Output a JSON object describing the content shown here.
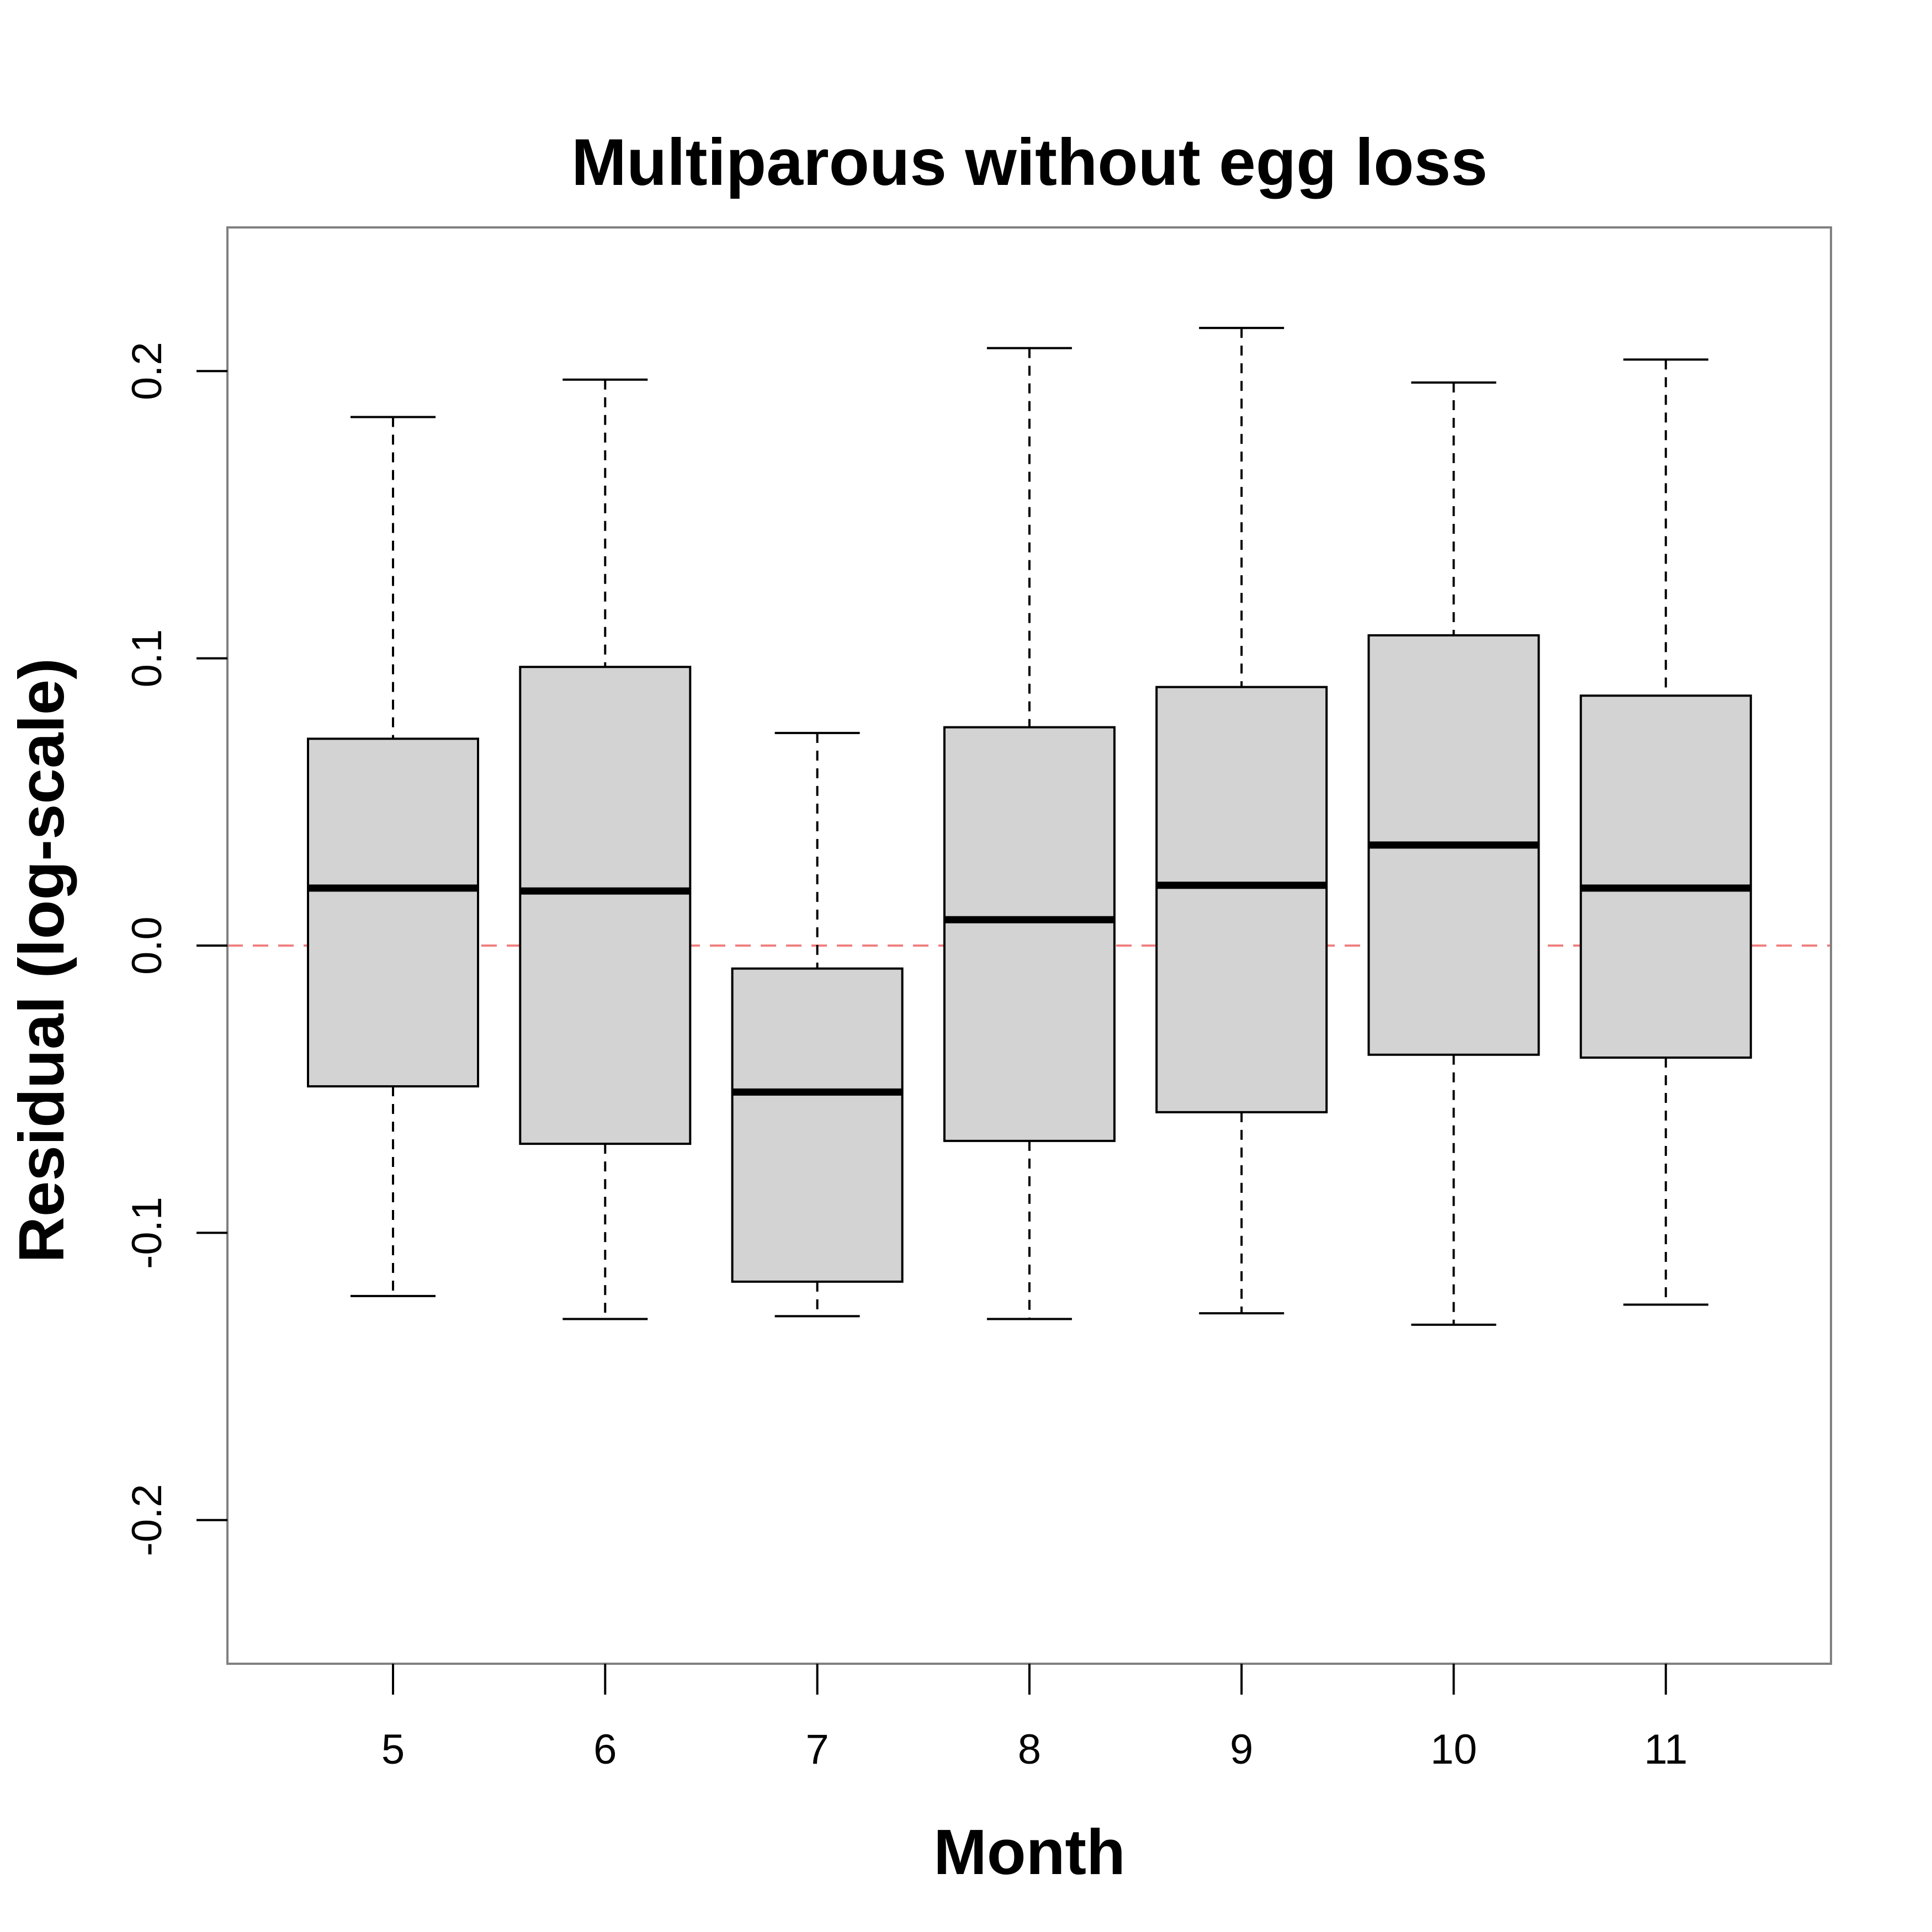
{
  "chart_data": {
    "type": "boxplot",
    "title": "Multiparous without egg loss",
    "xlabel": "Month",
    "ylabel": "Residual (log-scale)",
    "categories": [
      "5",
      "6",
      "7",
      "8",
      "9",
      "10",
      "11"
    ],
    "boxes": [
      {
        "category": "5",
        "whisker_low": -0.122,
        "q1": -0.049,
        "median": 0.02,
        "q3": 0.072,
        "whisker_high": 0.184
      },
      {
        "category": "6",
        "whisker_low": -0.13,
        "q1": -0.069,
        "median": 0.019,
        "q3": 0.097,
        "whisker_high": 0.197
      },
      {
        "category": "7",
        "whisker_low": -0.129,
        "q1": -0.117,
        "median": -0.051,
        "q3": -0.008,
        "whisker_high": 0.074
      },
      {
        "category": "8",
        "whisker_low": -0.13,
        "q1": -0.068,
        "median": 0.009,
        "q3": 0.076,
        "whisker_high": 0.208
      },
      {
        "category": "9",
        "whisker_low": -0.128,
        "q1": -0.058,
        "median": 0.021,
        "q3": 0.09,
        "whisker_high": 0.215
      },
      {
        "category": "10",
        "whisker_low": -0.132,
        "q1": -0.038,
        "median": 0.035,
        "q3": 0.108,
        "whisker_high": 0.196
      },
      {
        "category": "11",
        "whisker_low": -0.125,
        "q1": -0.039,
        "median": 0.02,
        "q3": 0.087,
        "whisker_high": 0.204
      }
    ],
    "yticks": [
      "-0.2",
      "-0.1",
      "0.0",
      "0.1",
      "0.2"
    ],
    "ytick_values": [
      -0.2,
      -0.1,
      0.0,
      0.1,
      0.2
    ],
    "ylim": [
      -0.25,
      0.25
    ],
    "reference_line": {
      "y": 0.0,
      "style": "dashed",
      "color": "#f08080"
    },
    "box_fill": "#d3d3d3",
    "grid": false,
    "legend": "none"
  }
}
